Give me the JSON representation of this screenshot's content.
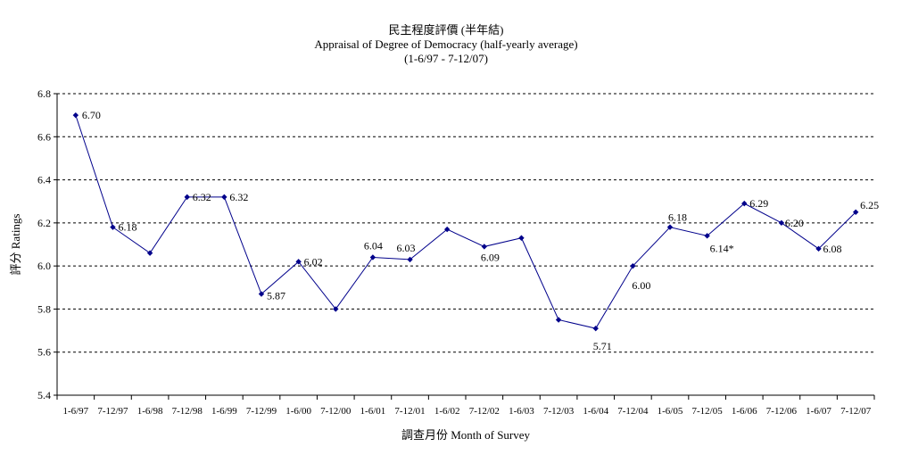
{
  "chart_data": {
    "type": "line",
    "title": "民主程度評價 (半年結)",
    "subtitle": "Appraisal of Degree of Democracy (half-yearly average)",
    "period": "(1-6/97 - 7-12/07)",
    "xlabel": "調查月份 Month of Survey",
    "ylabel": "評分 Ratings",
    "ylim": [
      5.4,
      6.8
    ],
    "yticks": [
      5.4,
      5.6,
      5.8,
      6.0,
      6.2,
      6.4,
      6.6,
      6.8
    ],
    "ytick_labels": [
      "5.4",
      "5.6",
      "5.8",
      "6.0",
      "6.2",
      "6.4",
      "6.6",
      "6.8"
    ],
    "grid": "horizontal dashed",
    "legend": "none",
    "line_color": "#00008b",
    "categories": [
      "1-6/97",
      "7-12/97",
      "1-6/98",
      "7-12/98",
      "1-6/99",
      "7-12/99",
      "1-6/00",
      "7-12/00",
      "1-6/01",
      "7-12/01",
      "1-6/02",
      "7-12/02",
      "1-6/03",
      "7-12/03",
      "1-6/04",
      "7-12/04",
      "1-6/05",
      "7-12/05",
      "1-6/06",
      "7-12/06",
      "1-6/07",
      "7-12/07"
    ],
    "values": [
      6.7,
      6.18,
      6.06,
      6.32,
      6.32,
      5.87,
      6.02,
      5.8,
      6.04,
      6.03,
      6.17,
      6.09,
      6.13,
      5.75,
      5.71,
      6.0,
      6.18,
      6.14,
      6.29,
      6.2,
      6.08,
      6.25
    ],
    "data_labels": [
      "6.70",
      "6.18",
      null,
      "6.32",
      "6.32",
      "5.87",
      "6.02",
      null,
      "6.04",
      "6.03",
      null,
      "6.09",
      null,
      null,
      "5.71",
      "6.00",
      "6.18",
      "6.14*",
      "6.29",
      "6.20",
      "6.08",
      "6.25"
    ]
  }
}
